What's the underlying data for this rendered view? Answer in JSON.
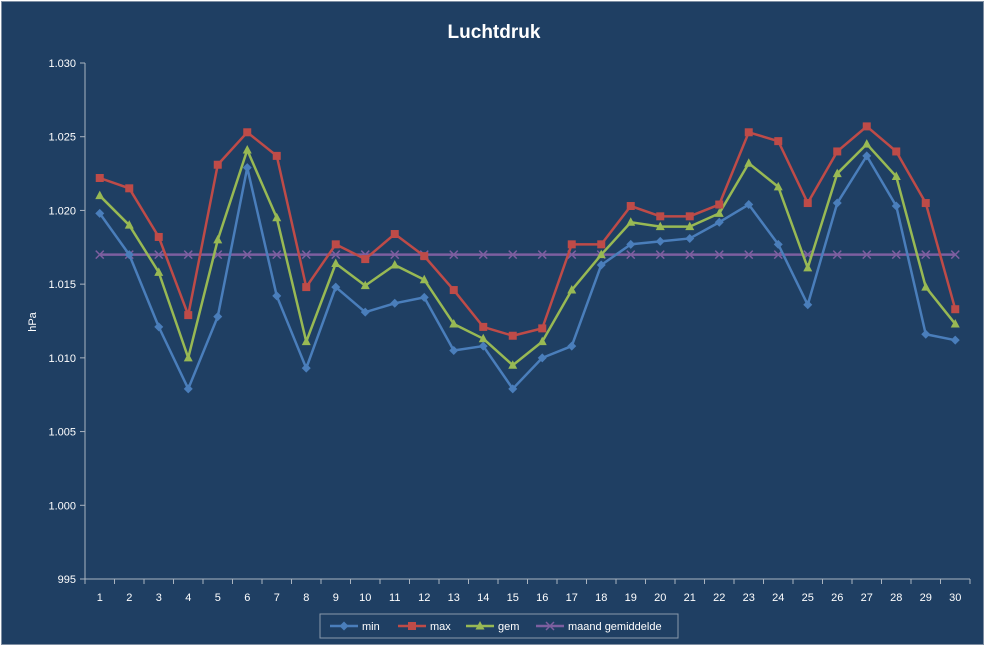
{
  "chart_data": {
    "type": "line",
    "title": "Luchtdruk",
    "xlabel": "",
    "ylabel": "hPa",
    "ylim": [
      995,
      1030
    ],
    "y_ticks": [
      "995",
      "1.000",
      "1.005",
      "1.010",
      "1.015",
      "1.020",
      "1.025",
      "1.030"
    ],
    "y_tick_values": [
      995,
      1000,
      1005,
      1010,
      1015,
      1020,
      1025,
      1030
    ],
    "categories": [
      "1",
      "2",
      "3",
      "4",
      "5",
      "6",
      "7",
      "8",
      "9",
      "10",
      "11",
      "12",
      "13",
      "14",
      "15",
      "16",
      "17",
      "18",
      "19",
      "20",
      "21",
      "22",
      "23",
      "24",
      "25",
      "26",
      "27",
      "28",
      "29",
      "30"
    ],
    "grid": false,
    "legend_position": "bottom",
    "series": [
      {
        "name": "min",
        "color": "#4a7ebb",
        "marker": "diamond",
        "values": [
          1019.8,
          1017.0,
          1012.1,
          1007.9,
          1012.8,
          1022.9,
          1014.2,
          1009.3,
          1014.8,
          1013.1,
          1013.7,
          1014.1,
          1010.5,
          1010.8,
          1007.9,
          1010.0,
          1010.8,
          1016.3,
          1017.7,
          1017.9,
          1018.1,
          1019.2,
          1020.4,
          1017.7,
          1013.6,
          1020.5,
          1023.7,
          1020.3,
          1011.6,
          1011.2
        ]
      },
      {
        "name": "max",
        "color": "#be4b48",
        "marker": "square",
        "values": [
          1022.2,
          1021.5,
          1018.2,
          1012.9,
          1023.1,
          1025.3,
          1023.7,
          1014.8,
          1017.7,
          1016.7,
          1018.4,
          1016.9,
          1014.6,
          1012.1,
          1011.5,
          1012.0,
          1017.7,
          1017.7,
          1020.3,
          1019.6,
          1019.6,
          1020.4,
          1025.3,
          1024.7,
          1020.5,
          1024.0,
          1025.7,
          1024.0,
          1020.5,
          1013.3
        ]
      },
      {
        "name": "gem",
        "color": "#98b954",
        "marker": "triangle",
        "values": [
          1021.0,
          1019.0,
          1015.8,
          1010.0,
          1018.0,
          1024.1,
          1019.5,
          1011.1,
          1016.4,
          1014.9,
          1016.3,
          1015.3,
          1012.3,
          1011.3,
          1009.5,
          1011.1,
          1014.6,
          1017.0,
          1019.2,
          1018.9,
          1018.9,
          1019.8,
          1023.2,
          1021.6,
          1016.1,
          1022.5,
          1024.5,
          1022.3,
          1014.8,
          1012.3
        ]
      },
      {
        "name": "maand gemiddelde",
        "color": "#7d5fa0",
        "marker": "x",
        "values": [
          1017.0,
          1017.0,
          1017.0,
          1017.0,
          1017.0,
          1017.0,
          1017.0,
          1017.0,
          1017.0,
          1017.0,
          1017.0,
          1017.0,
          1017.0,
          1017.0,
          1017.0,
          1017.0,
          1017.0,
          1017.0,
          1017.0,
          1017.0,
          1017.0,
          1017.0,
          1017.0,
          1017.0,
          1017.0,
          1017.0,
          1017.0,
          1017.0,
          1017.0,
          1017.0
        ]
      }
    ]
  }
}
